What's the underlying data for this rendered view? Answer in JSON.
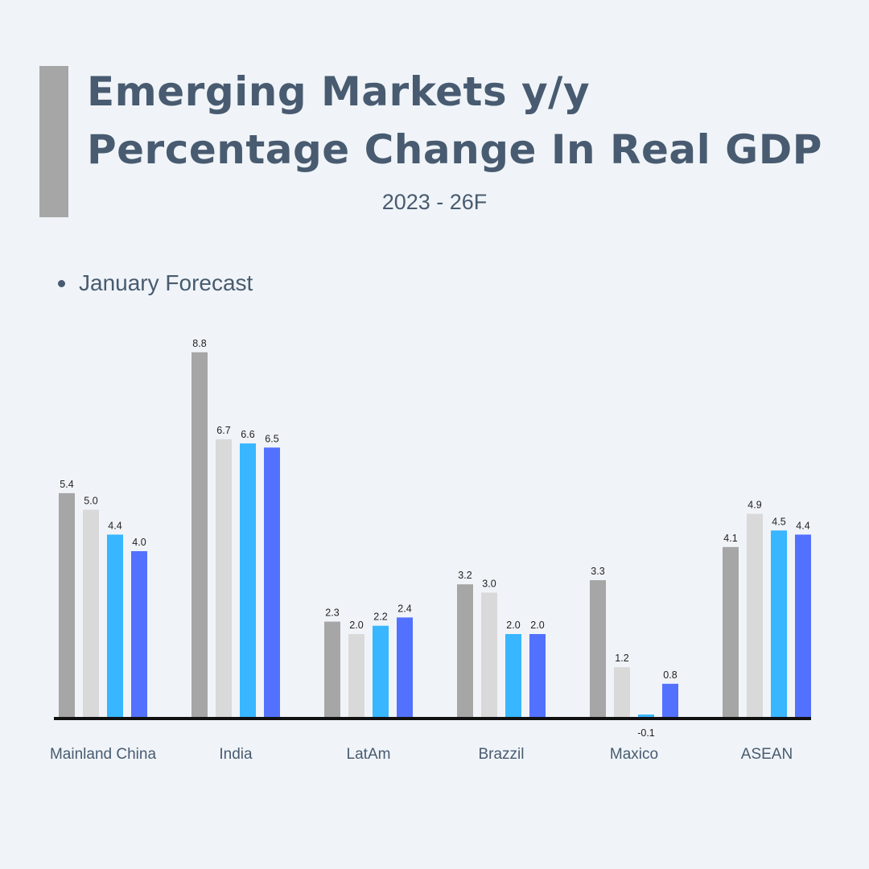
{
  "header": {
    "title_line1": "Emerging Markets y/y",
    "title_line2": "Percentage Change In Real GDP",
    "subtitle": "2023 - 26F"
  },
  "legend": {
    "label": "January Forecast"
  },
  "colors": {
    "accent": "#a6a6a6",
    "text": "#485b70",
    "series": [
      "#a6a6a6",
      "#d9d9d9",
      "#38b6ff",
      "#5271ff"
    ],
    "baseline": "#111111"
  },
  "chart_data": {
    "type": "bar",
    "title": "Emerging Markets y/y Percentage Change In Real GDP",
    "subtitle": "2023 - 26F",
    "legend": [
      "January Forecast"
    ],
    "categories": [
      "Mainland China",
      "India",
      "LatAm",
      "Brazzil",
      "Maxico",
      "ASEAN"
    ],
    "values": [
      [
        5.4,
        5.0,
        4.4,
        4.0
      ],
      [
        8.8,
        6.7,
        6.6,
        6.5
      ],
      [
        2.3,
        2.0,
        2.2,
        2.4
      ],
      [
        3.2,
        3.0,
        2.0,
        2.0
      ],
      [
        3.3,
        1.2,
        -0.1,
        0.8
      ],
      [
        4.1,
        4.9,
        4.5,
        4.4
      ]
    ],
    "labels": [
      [
        "5.4",
        "5.0",
        "4.4",
        "4.0"
      ],
      [
        "8.8",
        "6.7",
        "6.6",
        "6.5"
      ],
      [
        "2.3",
        "2.0",
        "2.2",
        "2.4"
      ],
      [
        "3.2",
        "3.0",
        "2.0",
        "2.0"
      ],
      [
        "3.3",
        "1.2",
        "-0.1",
        "0.8"
      ],
      [
        "4.1",
        "4.9",
        "4.5",
        "4.4"
      ]
    ],
    "xlabel": "",
    "ylabel": "",
    "ylim": [
      -0.1,
      8.8
    ]
  }
}
